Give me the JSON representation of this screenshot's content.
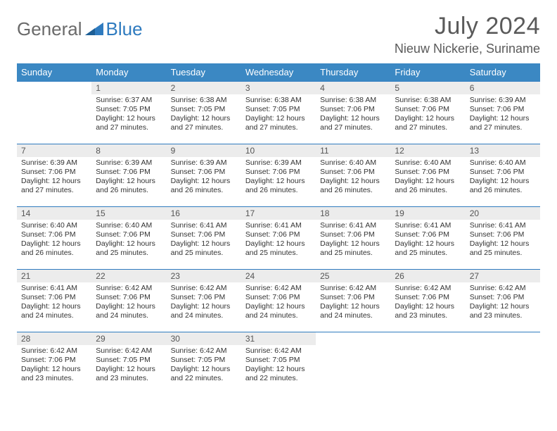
{
  "brand": {
    "part1": "General",
    "part2": "Blue"
  },
  "title": "July 2024",
  "location": "Nieuw Nickerie, Suriname",
  "colors": {
    "header_bg": "#3b88c3",
    "border": "#2f7bbf",
    "daynum_bg": "#ececec",
    "text": "#333333",
    "muted": "#5a5a5a"
  },
  "weekdays": [
    "Sunday",
    "Monday",
    "Tuesday",
    "Wednesday",
    "Thursday",
    "Friday",
    "Saturday"
  ],
  "start_weekday": 1,
  "days": [
    {
      "n": 1,
      "sunrise": "6:37 AM",
      "sunset": "7:05 PM",
      "daylight": "12 hours and 27 minutes."
    },
    {
      "n": 2,
      "sunrise": "6:38 AM",
      "sunset": "7:05 PM",
      "daylight": "12 hours and 27 minutes."
    },
    {
      "n": 3,
      "sunrise": "6:38 AM",
      "sunset": "7:05 PM",
      "daylight": "12 hours and 27 minutes."
    },
    {
      "n": 4,
      "sunrise": "6:38 AM",
      "sunset": "7:06 PM",
      "daylight": "12 hours and 27 minutes."
    },
    {
      "n": 5,
      "sunrise": "6:38 AM",
      "sunset": "7:06 PM",
      "daylight": "12 hours and 27 minutes."
    },
    {
      "n": 6,
      "sunrise": "6:39 AM",
      "sunset": "7:06 PM",
      "daylight": "12 hours and 27 minutes."
    },
    {
      "n": 7,
      "sunrise": "6:39 AM",
      "sunset": "7:06 PM",
      "daylight": "12 hours and 27 minutes."
    },
    {
      "n": 8,
      "sunrise": "6:39 AM",
      "sunset": "7:06 PM",
      "daylight": "12 hours and 26 minutes."
    },
    {
      "n": 9,
      "sunrise": "6:39 AM",
      "sunset": "7:06 PM",
      "daylight": "12 hours and 26 minutes."
    },
    {
      "n": 10,
      "sunrise": "6:39 AM",
      "sunset": "7:06 PM",
      "daylight": "12 hours and 26 minutes."
    },
    {
      "n": 11,
      "sunrise": "6:40 AM",
      "sunset": "7:06 PM",
      "daylight": "12 hours and 26 minutes."
    },
    {
      "n": 12,
      "sunrise": "6:40 AM",
      "sunset": "7:06 PM",
      "daylight": "12 hours and 26 minutes."
    },
    {
      "n": 13,
      "sunrise": "6:40 AM",
      "sunset": "7:06 PM",
      "daylight": "12 hours and 26 minutes."
    },
    {
      "n": 14,
      "sunrise": "6:40 AM",
      "sunset": "7:06 PM",
      "daylight": "12 hours and 26 minutes."
    },
    {
      "n": 15,
      "sunrise": "6:40 AM",
      "sunset": "7:06 PM",
      "daylight": "12 hours and 25 minutes."
    },
    {
      "n": 16,
      "sunrise": "6:41 AM",
      "sunset": "7:06 PM",
      "daylight": "12 hours and 25 minutes."
    },
    {
      "n": 17,
      "sunrise": "6:41 AM",
      "sunset": "7:06 PM",
      "daylight": "12 hours and 25 minutes."
    },
    {
      "n": 18,
      "sunrise": "6:41 AM",
      "sunset": "7:06 PM",
      "daylight": "12 hours and 25 minutes."
    },
    {
      "n": 19,
      "sunrise": "6:41 AM",
      "sunset": "7:06 PM",
      "daylight": "12 hours and 25 minutes."
    },
    {
      "n": 20,
      "sunrise": "6:41 AM",
      "sunset": "7:06 PM",
      "daylight": "12 hours and 25 minutes."
    },
    {
      "n": 21,
      "sunrise": "6:41 AM",
      "sunset": "7:06 PM",
      "daylight": "12 hours and 24 minutes."
    },
    {
      "n": 22,
      "sunrise": "6:42 AM",
      "sunset": "7:06 PM",
      "daylight": "12 hours and 24 minutes."
    },
    {
      "n": 23,
      "sunrise": "6:42 AM",
      "sunset": "7:06 PM",
      "daylight": "12 hours and 24 minutes."
    },
    {
      "n": 24,
      "sunrise": "6:42 AM",
      "sunset": "7:06 PM",
      "daylight": "12 hours and 24 minutes."
    },
    {
      "n": 25,
      "sunrise": "6:42 AM",
      "sunset": "7:06 PM",
      "daylight": "12 hours and 24 minutes."
    },
    {
      "n": 26,
      "sunrise": "6:42 AM",
      "sunset": "7:06 PM",
      "daylight": "12 hours and 23 minutes."
    },
    {
      "n": 27,
      "sunrise": "6:42 AM",
      "sunset": "7:06 PM",
      "daylight": "12 hours and 23 minutes."
    },
    {
      "n": 28,
      "sunrise": "6:42 AM",
      "sunset": "7:06 PM",
      "daylight": "12 hours and 23 minutes."
    },
    {
      "n": 29,
      "sunrise": "6:42 AM",
      "sunset": "7:05 PM",
      "daylight": "12 hours and 23 minutes."
    },
    {
      "n": 30,
      "sunrise": "6:42 AM",
      "sunset": "7:05 PM",
      "daylight": "12 hours and 22 minutes."
    },
    {
      "n": 31,
      "sunrise": "6:42 AM",
      "sunset": "7:05 PM",
      "daylight": "12 hours and 22 minutes."
    }
  ],
  "labels": {
    "sunrise": "Sunrise:",
    "sunset": "Sunset:",
    "daylight": "Daylight:"
  }
}
